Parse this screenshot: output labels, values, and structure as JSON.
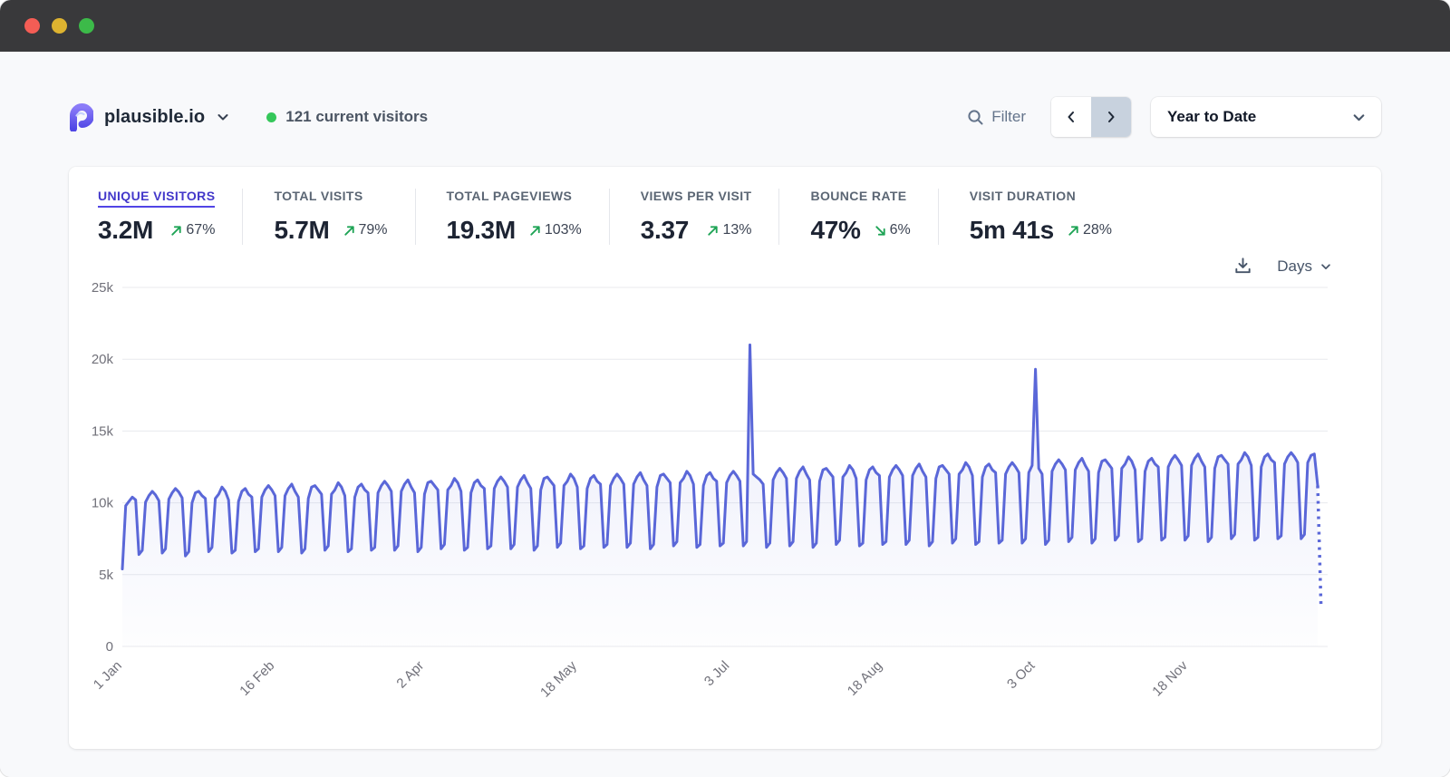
{
  "window": {
    "traffic_lights": [
      "#f45d55",
      "#ddb330",
      "#3cba49"
    ]
  },
  "header": {
    "site_name": "plausible.io",
    "current_visitors_label": "121 current visitors",
    "filter_label": "Filter",
    "date_range_value": "Year to Date"
  },
  "stats": [
    {
      "label": "UNIQUE VISITORS",
      "value": "3.2M",
      "change": "67%",
      "trend": "up",
      "active": true
    },
    {
      "label": "TOTAL VISITS",
      "value": "5.7M",
      "change": "79%",
      "trend": "up",
      "active": false
    },
    {
      "label": "TOTAL PAGEVIEWS",
      "value": "19.3M",
      "change": "103%",
      "trend": "up",
      "active": false
    },
    {
      "label": "VIEWS PER VISIT",
      "value": "3.37",
      "change": "13%",
      "trend": "up",
      "active": false
    },
    {
      "label": "BOUNCE RATE",
      "value": "47%",
      "change": "6%",
      "trend": "down",
      "active": false
    },
    {
      "label": "VISIT DURATION",
      "value": "5m 41s",
      "change": "28%",
      "trend": "up",
      "active": false
    }
  ],
  "chart_controls": {
    "interval_label": "Days"
  },
  "colors": {
    "accent": "#5a67d8",
    "positive": "#1fa456",
    "active_tab": "#4338ca",
    "grid": "#e8eaee",
    "tick_text": "#71717a"
  },
  "chart_data": {
    "type": "line",
    "title": "Unique visitors — Year to Date (daily)",
    "xlabel": "",
    "ylabel": "",
    "ylim": [
      0,
      25000
    ],
    "grid": "horizontal",
    "legend": "none",
    "y_ticks": [
      "0",
      "5k",
      "10k",
      "15k",
      "20k",
      "25k"
    ],
    "y_tick_values": [
      0,
      5000,
      10000,
      15000,
      20000,
      25000
    ],
    "x_tick_labels": [
      "1 Jan",
      "16 Feb",
      "2 Apr",
      "18 May",
      "3 Jul",
      "18 Aug",
      "3 Oct",
      "18 Nov"
    ],
    "x_tick_indices": [
      0,
      46,
      91,
      137,
      183,
      229,
      275,
      321
    ],
    "series": [
      {
        "name": "Unique visitors",
        "color": "#5a67d8",
        "partial_last_point": true,
        "values": [
          5400,
          9800,
          10100,
          10400,
          10200,
          6400,
          6700,
          10050,
          10500,
          10800,
          10550,
          10150,
          6500,
          6800,
          10250,
          10700,
          11000,
          10750,
          10350,
          6300,
          6600,
          10000,
          10700,
          10800,
          10500,
          10300,
          6600,
          6900,
          10300,
          10600,
          11100,
          10800,
          10200,
          6500,
          6700,
          10100,
          10800,
          11000,
          10600,
          10400,
          6600,
          6800,
          10400,
          10900,
          11200,
          10900,
          10500,
          6600,
          6900,
          10500,
          11000,
          11300,
          10800,
          10400,
          6500,
          6800,
          10300,
          11100,
          11200,
          10900,
          10600,
          6700,
          7000,
          10600,
          10900,
          11400,
          11100,
          10500,
          6600,
          6800,
          10400,
          11100,
          11300,
          10900,
          10700,
          6700,
          6900,
          10700,
          11200,
          11500,
          11200,
          10800,
          6700,
          7000,
          10800,
          11300,
          11600,
          11100,
          10700,
          6600,
          6900,
          10600,
          11400,
          11500,
          11200,
          10900,
          6800,
          7100,
          10900,
          11200,
          11700,
          11400,
          10800,
          6700,
          6900,
          10700,
          11400,
          11600,
          11200,
          11000,
          6800,
          7000,
          11000,
          11500,
          11800,
          11500,
          11100,
          6800,
          7100,
          11100,
          11600,
          11900,
          11400,
          11000,
          6700,
          7000,
          10900,
          11700,
          11800,
          11500,
          11200,
          6900,
          7200,
          11200,
          11500,
          12000,
          11700,
          11100,
          6800,
          7000,
          11000,
          11700,
          11900,
          11500,
          11300,
          6900,
          7100,
          11200,
          11700,
          12000,
          11700,
          11300,
          6900,
          7200,
          11300,
          11800,
          12100,
          11600,
          11200,
          6800,
          7100,
          11100,
          11900,
          12000,
          11700,
          11400,
          7000,
          7300,
          11400,
          11700,
          12200,
          11900,
          11300,
          6900,
          7100,
          11200,
          11900,
          12100,
          11700,
          11500,
          7000,
          7200,
          11400,
          11900,
          12200,
          11900,
          11500,
          7000,
          7300,
          21000,
          12000,
          11800,
          11600,
          11300,
          6900,
          7200,
          11600,
          12100,
          12400,
          12100,
          11700,
          7000,
          7300,
          11700,
          12200,
          12500,
          12000,
          11600,
          6900,
          7200,
          11500,
          12300,
          12400,
          12100,
          11800,
          7100,
          7400,
          11800,
          12100,
          12600,
          12300,
          11700,
          7000,
          7200,
          11600,
          12300,
          12500,
          12100,
          11900,
          7100,
          7300,
          11800,
          12300,
          12600,
          12300,
          11900,
          7100,
          7400,
          11900,
          12400,
          12700,
          12200,
          11800,
          7000,
          7300,
          11700,
          12500,
          12600,
          12300,
          12000,
          7200,
          7500,
          12000,
          12300,
          12800,
          12500,
          11900,
          7100,
          7300,
          11800,
          12500,
          12700,
          12300,
          12100,
          7200,
          7400,
          12000,
          12500,
          12800,
          12500,
          12100,
          7200,
          7500,
          12100,
          12600,
          19300,
          12400,
          12000,
          7100,
          7400,
          12200,
          12700,
          13000,
          12700,
          12300,
          7300,
          7600,
          12300,
          12800,
          13100,
          12600,
          12200,
          7200,
          7500,
          12100,
          12900,
          13000,
          12700,
          12400,
          7400,
          7700,
          12400,
          12700,
          13200,
          12900,
          12300,
          7300,
          7500,
          12200,
          12900,
          13100,
          12700,
          12500,
          7400,
          7600,
          12500,
          13000,
          13300,
          13000,
          12600,
          7400,
          7700,
          12600,
          13100,
          13400,
          12900,
          12500,
          7300,
          7600,
          12400,
          13200,
          13300,
          13000,
          12700,
          7500,
          7800,
          12700,
          13000,
          13500,
          13200,
          12600,
          7400,
          7600,
          12500,
          13200,
          13400,
          13000,
          12800,
          7500,
          7700,
          12700,
          13200,
          13500,
          13200,
          12800,
          7500,
          7800,
          12800,
          13300,
          13400,
          11200,
          2700
        ]
      }
    ]
  }
}
